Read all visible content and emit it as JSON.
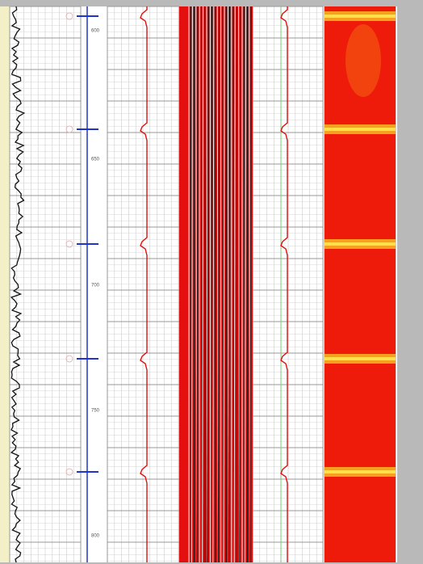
{
  "depth_track": {
    "labels": [
      "600",
      "650",
      "700",
      "750",
      "800"
    ]
  }
}
